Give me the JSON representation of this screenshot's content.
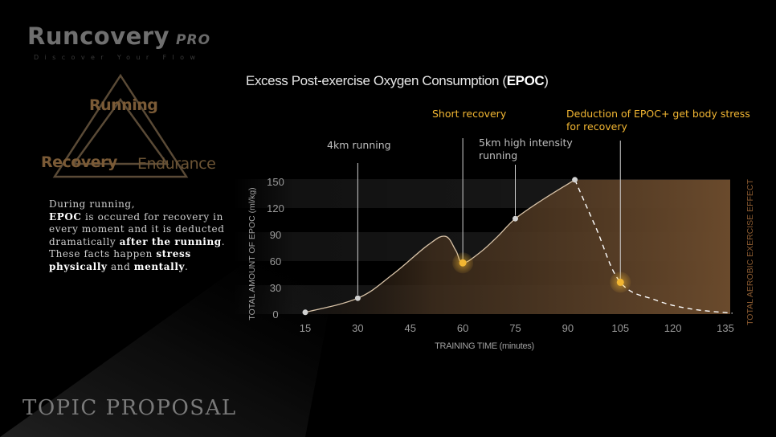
{
  "brand": {
    "name": "Runcovery",
    "edition": "PRO",
    "tagline": "Discover Your Flow"
  },
  "triangle": {
    "top_label": "Running",
    "left_label": "Recovery",
    "right_label": "Endurance"
  },
  "description": {
    "line1": "During running,",
    "epoc": "EPOC",
    "line2": " is occured for recovery in every moment and it is deducted dramatically ",
    "after_running": "after the running",
    "line3": ".",
    "line4": "These facts happen ",
    "stress": "stress",
    "physically": "physically",
    "and": " and ",
    "mentally": "mentally",
    "end": "."
  },
  "footer": {
    "topic": "TOPIC PROPOSAL"
  },
  "chart_title": {
    "prefix": "Excess Post-exercise Oxygen Consumption (",
    "bold": "EPOC",
    "suffix": ")"
  },
  "colors": {
    "accent": "#f2b632",
    "brown": "#7a5a36",
    "fill_dark": "#2b2118",
    "fill_light": "#5a4028"
  },
  "chart_data": {
    "type": "area",
    "xlabel": "TRAINING TIME (minutes)",
    "ylabel": "TOTAL AMOUNT OF EPOC (ml/kg)",
    "y2label": "TOTAL AEROBIC EXERCISE EFFECT",
    "x_ticks": [
      "15",
      "30",
      "45",
      "60",
      "75",
      "90",
      "105",
      "120",
      "135"
    ],
    "y_ticks": [
      "0",
      "30",
      "60",
      "90",
      "120",
      "150"
    ],
    "xlim": [
      15,
      135
    ],
    "ylim": [
      0,
      150
    ],
    "series": [
      {
        "values": [
          [
            15,
            2
          ],
          [
            30,
            18
          ],
          [
            40,
            45
          ],
          [
            50,
            78
          ],
          [
            55,
            88
          ],
          [
            58,
            72
          ],
          [
            60,
            58
          ],
          [
            65,
            70
          ],
          [
            70,
            88
          ],
          [
            75,
            108
          ],
          [
            83,
            130
          ],
          [
            92,
            152
          ]
        ]
      },
      {
        "style": "dashed",
        "values": [
          [
            92,
            152
          ],
          [
            98,
            98
          ],
          [
            105,
            36
          ],
          [
            115,
            16
          ],
          [
            125,
            6
          ],
          [
            137,
            1
          ]
        ]
      }
    ],
    "markers": [
      {
        "x": 15,
        "y": 2,
        "type": "point"
      },
      {
        "x": 30,
        "y": 18,
        "type": "point"
      },
      {
        "x": 60,
        "y": 58,
        "type": "highlight"
      },
      {
        "x": 75,
        "y": 108,
        "type": "point"
      },
      {
        "x": 92,
        "y": 152,
        "type": "point"
      },
      {
        "x": 105,
        "y": 36,
        "type": "highlight"
      }
    ],
    "annotations": [
      {
        "x": 30,
        "text": [
          "4km running"
        ],
        "color": "#bfbfbf"
      },
      {
        "x": 60,
        "text": [
          "Short recovery"
        ],
        "color": "#f2b632"
      },
      {
        "x": 75,
        "text": [
          "5km high intensity",
          "running"
        ],
        "color": "#bfbfbf"
      },
      {
        "x": 105,
        "text": [
          "Deduction of EPOC+ get body stress",
          "for recovery"
        ],
        "color": "#f2b632"
      }
    ]
  }
}
